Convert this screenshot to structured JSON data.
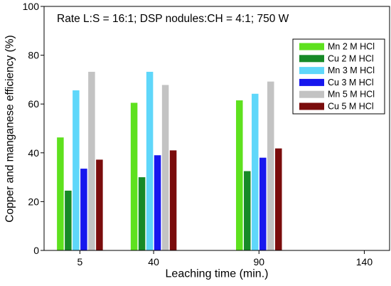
{
  "chart_data": {
    "type": "bar",
    "title": "Rate L:S = 16:1; DSP nodules:CH = 4:1; 750 W",
    "xlabel": "Leaching time (min.)",
    "ylabel": "Copper and manganese efficiency (%)",
    "x": [
      5,
      40,
      90
    ],
    "x_ticks": [
      5,
      40,
      90,
      140
    ],
    "y_ticks": [
      0,
      20,
      40,
      60,
      80,
      100
    ],
    "xlim": [
      -12,
      152
    ],
    "ylim": [
      0,
      100
    ],
    "grid": false,
    "legend_position": "top-right",
    "series": [
      {
        "name": "Mn 2 M HCl",
        "color": "#5ee11e",
        "values": [
          46.3,
          60.5,
          61.5
        ]
      },
      {
        "name": "Cu 2 M HCl",
        "color": "#178a27",
        "values": [
          24.5,
          30.0,
          32.5
        ]
      },
      {
        "name": "Mn 3 M HCl",
        "color": "#5fd7fa",
        "values": [
          65.6,
          73.2,
          64.2
        ]
      },
      {
        "name": "Cu 3 M HCl",
        "color": "#1717ee",
        "values": [
          33.5,
          39.0,
          38.0
        ]
      },
      {
        "name": "Mn 5 M HCl",
        "color": "#c3c3c3",
        "values": [
          73.2,
          67.8,
          69.2
        ]
      },
      {
        "name": "Cu 5 M HCl",
        "color": "#7a0c0c",
        "values": [
          37.2,
          41.0,
          41.8
        ]
      }
    ]
  }
}
